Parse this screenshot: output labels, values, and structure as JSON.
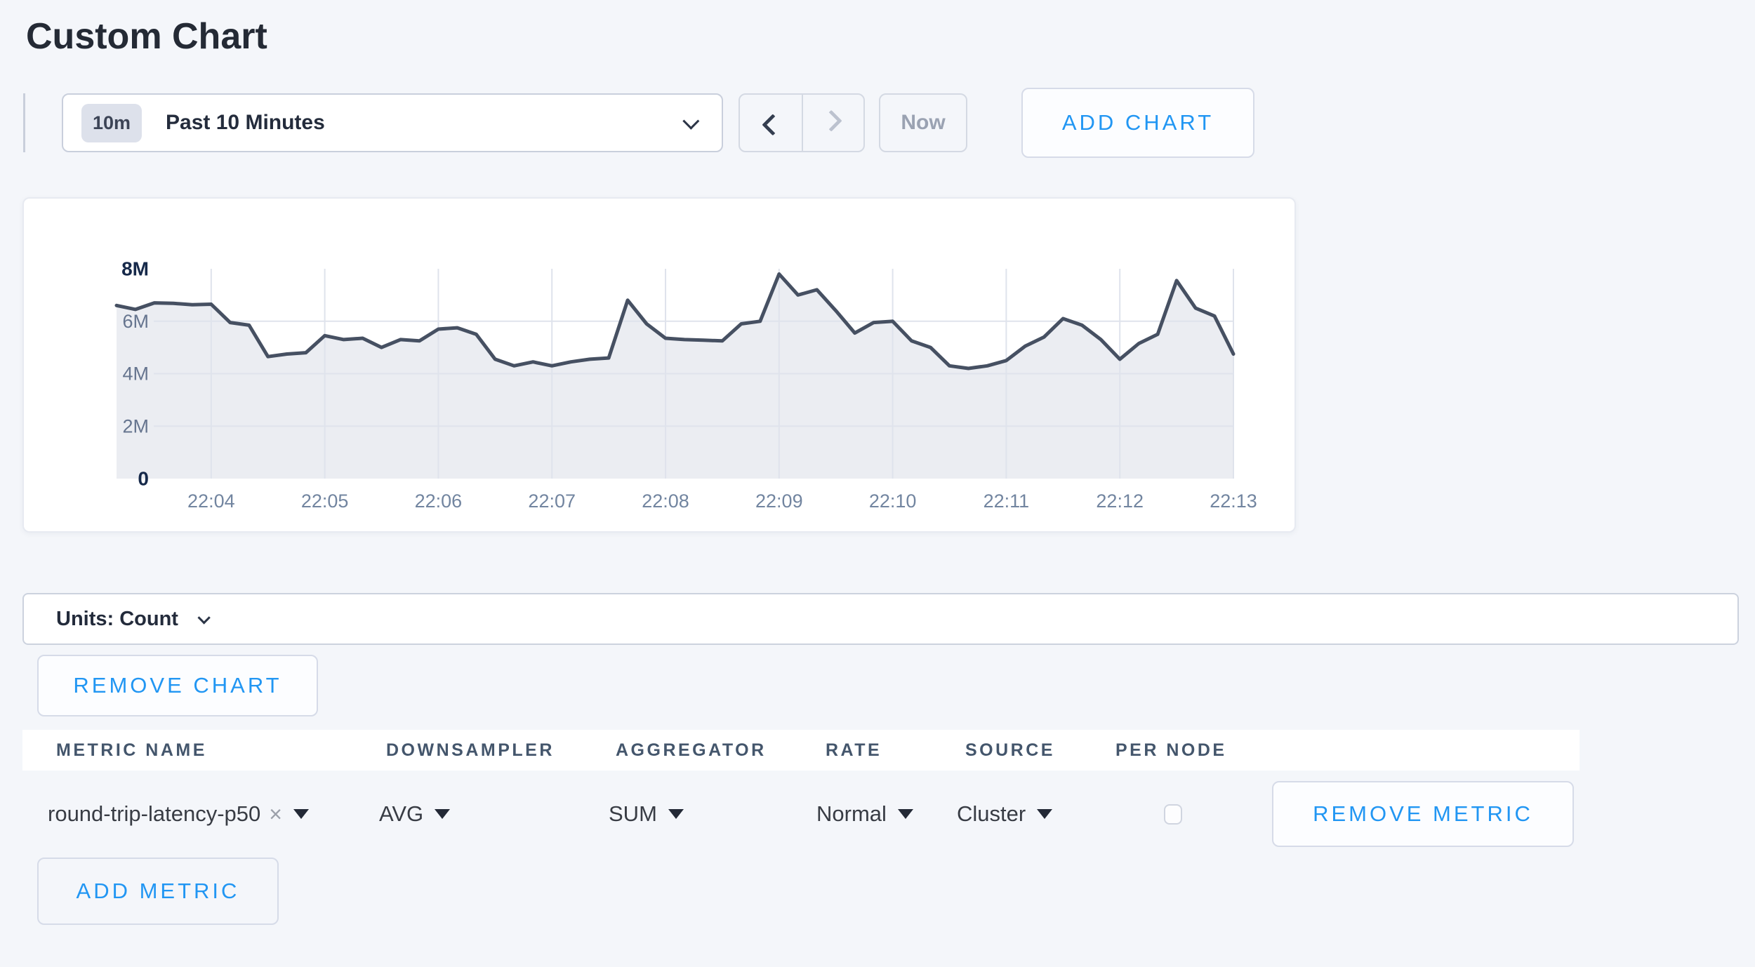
{
  "page": {
    "title": "Custom Chart"
  },
  "colors": {
    "accent_blue": "#2196f3",
    "page_background": "#f4f6fa",
    "line": "#465062",
    "fill": "#ebedf2"
  },
  "toolbar": {
    "time_window_badge": "10m",
    "time_window_label": "Past 10 Minutes",
    "now_label": "Now",
    "add_chart_label": "ADD CHART"
  },
  "chart_data": {
    "type": "area",
    "title": "",
    "xlabel": "",
    "ylabel": "",
    "unit": "count",
    "ylim": [
      0,
      8000000
    ],
    "grid": true,
    "legend": "none",
    "series_name": "round-trip-latency-p50",
    "t_start_seconds": 190,
    "t_end_seconds": 780,
    "interval_seconds": 10,
    "values": [
      6600000,
      6450000,
      6700000,
      6680000,
      6630000,
      6650000,
      5950000,
      5850000,
      4650000,
      4750000,
      4800000,
      5450000,
      5300000,
      5350000,
      5000000,
      5300000,
      5250000,
      5700000,
      5750000,
      5500000,
      4550000,
      4300000,
      4450000,
      4300000,
      4450000,
      4550000,
      4600000,
      6800000,
      5900000,
      5350000,
      5300000,
      5280000,
      5250000,
      5900000,
      6000000,
      7800000,
      7000000,
      7200000,
      6400000,
      5550000,
      5950000,
      6000000,
      5250000,
      5000000,
      4300000,
      4200000,
      4300000,
      4500000,
      5050000,
      5400000,
      6100000,
      5850000,
      5300000,
      4550000,
      5150000,
      5500000,
      7550000,
      6500000,
      6200000,
      4750000
    ],
    "x_ticks": [
      {
        "label": "22:04",
        "seconds": 240
      },
      {
        "label": "22:05",
        "seconds": 300
      },
      {
        "label": "22:06",
        "seconds": 360
      },
      {
        "label": "22:07",
        "seconds": 420
      },
      {
        "label": "22:08",
        "seconds": 480
      },
      {
        "label": "22:09",
        "seconds": 540
      },
      {
        "label": "22:10",
        "seconds": 600
      },
      {
        "label": "22:11",
        "seconds": 660
      },
      {
        "label": "22:12",
        "seconds": 720
      },
      {
        "label": "22:13",
        "seconds": 780
      }
    ],
    "y_ticks": [
      {
        "label": "0",
        "value": 0,
        "strong": true,
        "grid": false
      },
      {
        "label": "2M",
        "value": 2000000,
        "strong": false,
        "grid": true
      },
      {
        "label": "4M",
        "value": 4000000,
        "strong": false,
        "grid": true
      },
      {
        "label": "6M",
        "value": 6000000,
        "strong": false,
        "grid": true
      },
      {
        "label": "8M",
        "value": 8000000,
        "strong": true,
        "grid": false
      }
    ],
    "line_color": "#465062",
    "fill_color": "#ebedf2",
    "grid_color": "#dfe3ec"
  },
  "units_bar": {
    "label": "Units: Count"
  },
  "chart_actions": {
    "remove_chart_label": "REMOVE CHART"
  },
  "metrics_table": {
    "columns": [
      "METRIC NAME",
      "DOWNSAMPLER",
      "AGGREGATOR",
      "RATE",
      "SOURCE",
      "PER NODE"
    ],
    "rows": [
      {
        "metric_name": "round-trip-latency-p50",
        "remove_symbol": "×",
        "downsampler": "AVG",
        "aggregator": "SUM",
        "rate": "Normal",
        "source": "Cluster",
        "per_node_checked": false,
        "remove_label": "REMOVE METRIC"
      }
    ],
    "add_metric_label": "ADD METRIC"
  }
}
